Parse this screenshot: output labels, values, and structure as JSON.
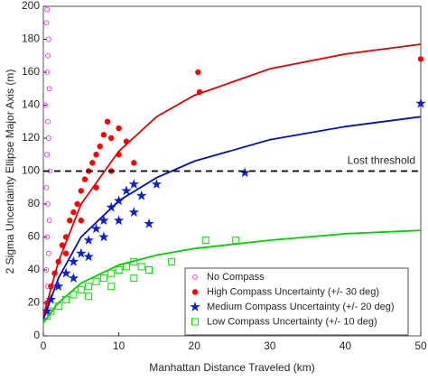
{
  "chart_data": {
    "type": "scatter",
    "xlabel": "Manhattan Distance Traveled (km)",
    "ylabel": "2 Sigma Uncertainty Ellipse Major Axis (m)",
    "xlim": [
      0,
      50
    ],
    "xticks": [
      0,
      10,
      20,
      30,
      40,
      50
    ],
    "ylim": [
      0,
      200
    ],
    "yticks": [
      0,
      20,
      40,
      60,
      80,
      100,
      120,
      140,
      160,
      180,
      200
    ],
    "legend": "lower right",
    "threshold": {
      "value": 100,
      "label": "Lost threshold"
    },
    "series": [
      {
        "name": "No Compass",
        "color": "#e020e0",
        "marker": "circle-open",
        "x": [
          0.3,
          0.5,
          0.6,
          0.4,
          0.7,
          0.5,
          0.8,
          0.6,
          0.4,
          0.9,
          0.5,
          0.7,
          0.6,
          0.3,
          0.8,
          0.5,
          0.6,
          0.7,
          0.4,
          0.5
        ],
        "values": [
          12,
          20,
          30,
          40,
          50,
          60,
          70,
          80,
          90,
          100,
          110,
          120,
          130,
          140,
          150,
          160,
          170,
          180,
          190,
          198
        ]
      },
      {
        "name": "High Compass Uncertainty (+/- 30 deg)",
        "color": "#ff0000",
        "marker": "circle",
        "x": [
          0.5,
          1,
          1.5,
          2,
          2.5,
          3,
          3.5,
          4,
          4.5,
          5,
          5.5,
          6,
          6.5,
          7,
          7.5,
          8,
          8.5,
          9,
          10,
          11,
          12,
          3,
          5,
          7,
          9,
          10,
          20.5,
          20.7,
          50
        ],
        "values": [
          20,
          30,
          38,
          45,
          55,
          60,
          70,
          75,
          80,
          88,
          95,
          100,
          105,
          110,
          115,
          122,
          130,
          120,
          110,
          118,
          105,
          50,
          70,
          90,
          100,
          126,
          160,
          148,
          168
        ]
      },
      {
        "name": "Medium Compass Uncertainty (+/- 20 deg)",
        "color": "#1020d0",
        "marker": "star",
        "x": [
          0.5,
          1,
          2,
          3,
          4,
          5,
          6,
          7,
          8,
          9,
          10,
          11,
          12,
          13,
          14,
          15,
          12,
          10,
          8,
          6,
          4,
          26.7,
          50
        ],
        "values": [
          15,
          22,
          30,
          38,
          45,
          50,
          58,
          65,
          70,
          78,
          82,
          88,
          92,
          85,
          68,
          92,
          75,
          70,
          60,
          48,
          35,
          99,
          141
        ]
      },
      {
        "name": "Low Compass Uncertainty (+/- 10 deg)",
        "color": "#00e000",
        "marker": "square-open",
        "x": [
          0.5,
          1,
          2,
          3,
          4,
          5,
          6,
          7,
          8,
          9,
          10,
          11,
          12,
          13,
          14,
          17,
          21.5,
          25.5,
          6,
          9,
          12
        ],
        "values": [
          12,
          15,
          18,
          22,
          25,
          28,
          30,
          33,
          35,
          38,
          40,
          42,
          45,
          42,
          40,
          45,
          58,
          58,
          24,
          30,
          35
        ]
      }
    ],
    "fits": [
      {
        "color": "#e00000",
        "x": [
          0,
          2,
          5,
          10,
          15,
          20,
          30,
          40,
          50
        ],
        "values": [
          12,
          45,
          80,
          112,
          133,
          146,
          162,
          171,
          177
        ]
      },
      {
        "color": "#0010c0",
        "x": [
          0,
          2,
          5,
          10,
          15,
          20,
          30,
          40,
          50
        ],
        "values": [
          10,
          35,
          60,
          82,
          96,
          106,
          119,
          127,
          133
        ]
      },
      {
        "color": "#00d000",
        "x": [
          0,
          2,
          5,
          10,
          15,
          20,
          30,
          40,
          50
        ],
        "values": [
          8,
          20,
          32,
          43,
          49,
          53,
          58,
          62,
          64
        ]
      }
    ]
  }
}
